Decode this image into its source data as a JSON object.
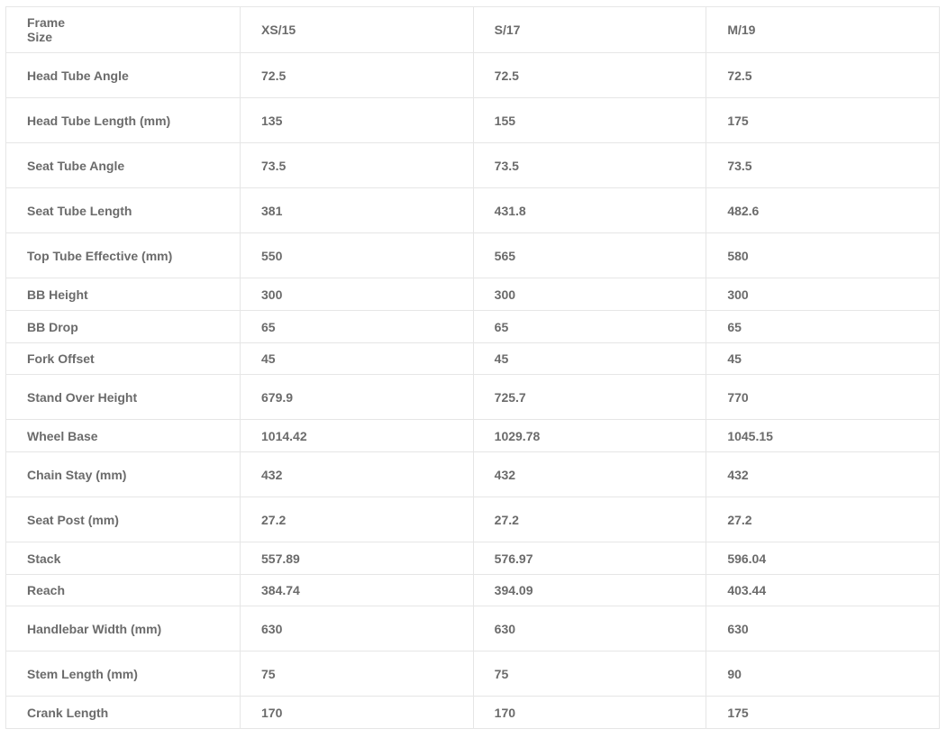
{
  "table": {
    "header": [
      "Frame\nSize",
      "XS/15",
      "S/17",
      "M/19"
    ],
    "rows": [
      [
        "Head Tube Angle",
        "72.5",
        "72.5",
        "72.5"
      ],
      [
        "Head Tube Length (mm)",
        "135",
        "155",
        "175"
      ],
      [
        "Seat Tube Angle",
        "73.5",
        "73.5",
        "73.5"
      ],
      [
        "Seat Tube Length",
        "381",
        "431.8",
        "482.6"
      ],
      [
        "Top Tube Effective (mm)",
        "550",
        "565",
        "580"
      ],
      [
        "BB Height",
        "300",
        "300",
        "300"
      ],
      [
        "BB Drop",
        "65",
        "65",
        "65"
      ],
      [
        "Fork Offset",
        "45",
        "45",
        "45"
      ],
      [
        "Stand Over Height",
        "679.9",
        "725.7",
        "770"
      ],
      [
        "Wheel Base",
        "1014.42",
        "1029.78",
        "1045.15"
      ],
      [
        "Chain Stay (mm)",
        "432",
        "432",
        "432"
      ],
      [
        "Seat Post (mm)",
        "27.2",
        "27.2",
        "27.2"
      ],
      [
        "Stack",
        "557.89",
        "576.97",
        "596.04"
      ],
      [
        "Reach",
        "384.74",
        "394.09",
        "403.44"
      ],
      [
        "Handlebar Width (mm)",
        "630",
        "630",
        "630"
      ],
      [
        "Stem Length (mm)",
        "75",
        "75",
        "90"
      ],
      [
        "Crank Length",
        "170",
        "170",
        "175"
      ]
    ]
  }
}
